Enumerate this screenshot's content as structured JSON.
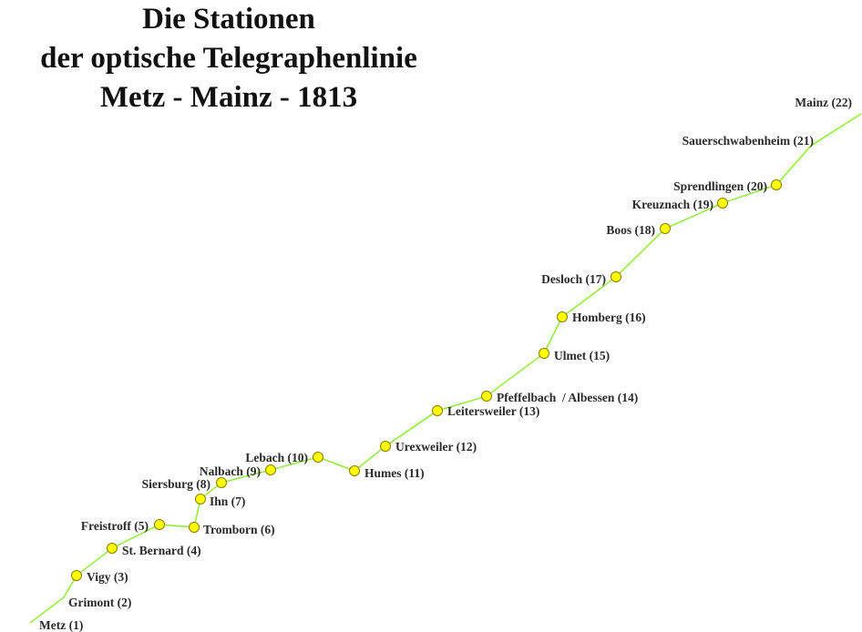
{
  "title": {
    "line1": "Die Stationen",
    "line2": "der optische Telegraphenlinie",
    "line3": "Metz - Mainz - 1813"
  },
  "colors": {
    "line": "#88ee22",
    "station_fill": "#ffff00",
    "station_stroke": "#8a7a00",
    "text": "#2a2a2a"
  },
  "stations": [
    {
      "n": 1,
      "label": "Metz (1)",
      "marker": false
    },
    {
      "n": 2,
      "label": "Grimont (2)",
      "marker": false
    },
    {
      "n": 3,
      "label": "Vigy (3)",
      "marker": true
    },
    {
      "n": 4,
      "label": "St. Bernard (4)",
      "marker": true
    },
    {
      "n": 5,
      "label": "Freistroff (5)",
      "marker": true
    },
    {
      "n": 6,
      "label": "Tromborn (6)",
      "marker": true
    },
    {
      "n": 7,
      "label": "Ihn (7)",
      "marker": true
    },
    {
      "n": 8,
      "label": "Siersburg (8)",
      "marker": true
    },
    {
      "n": 9,
      "label": "Nalbach (9)",
      "marker": true
    },
    {
      "n": 10,
      "label": "Lebach (10)",
      "marker": true
    },
    {
      "n": 11,
      "label": "Humes (11)",
      "marker": true
    },
    {
      "n": 12,
      "label": "Urexweiler (12)",
      "marker": true
    },
    {
      "n": 13,
      "label": "Leitersweiler (13)",
      "marker": true
    },
    {
      "n": 14,
      "label": "Pfeffelbach  / Albessen (14)",
      "marker": true
    },
    {
      "n": 15,
      "label": "Ulmet (15)",
      "marker": true
    },
    {
      "n": 16,
      "label": "Homberg (16)",
      "marker": true
    },
    {
      "n": 17,
      "label": "Desloch (17)",
      "marker": true
    },
    {
      "n": 18,
      "label": "Boos (18)",
      "marker": true
    },
    {
      "n": 19,
      "label": "Kreuznach (19)",
      "marker": true
    },
    {
      "n": 20,
      "label": "Sprendlingen (20)",
      "marker": true
    },
    {
      "n": 21,
      "label": "Sauerschwabenheim (21)",
      "marker": false
    },
    {
      "n": 22,
      "label": "Mainz (22)",
      "marker": false
    }
  ]
}
